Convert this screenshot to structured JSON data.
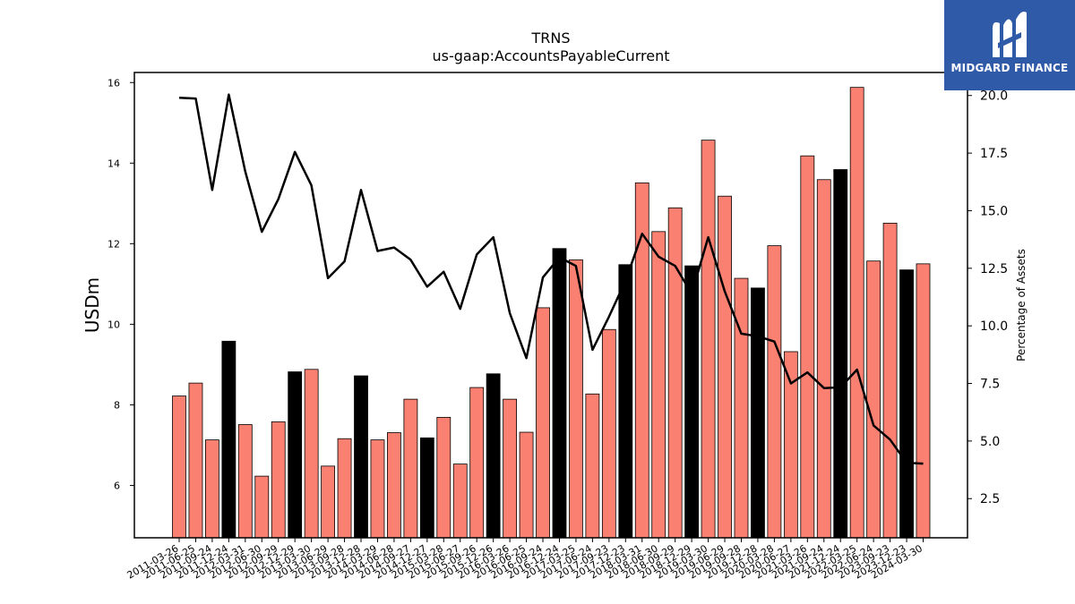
{
  "brand": {
    "name": "MIDGARD FINANCE",
    "logo_icon": "midgard-m-logo-icon",
    "bg_color": "#2f5aa8"
  },
  "chart_data": {
    "type": "bar",
    "title": "TRNS",
    "subtitle": "us-gaap:AccountsPayableCurrent",
    "ylabel": "USDm",
    "y2label": "Percentage of Assets",
    "ylim": [
      4.7,
      16.25
    ],
    "y2lim": [
      0.8,
      21.0
    ],
    "yticks": [
      6,
      8,
      10,
      12,
      14,
      16
    ],
    "y2ticks": [
      "2.5",
      "5.0",
      "7.5",
      "10.0",
      "12.5",
      "15.0",
      "17.5",
      "20.0"
    ],
    "bar_colors": {
      "default": "#fa8072",
      "highlight": "#000000"
    },
    "line_color": "#000000",
    "categories": [
      "2011-03-26",
      "2011-06-25",
      "2011-09-24",
      "2011-12-24",
      "2012-03-31",
      "2012-06-30",
      "2012-09-29",
      "2012-12-29",
      "2013-03-30",
      "2013-06-29",
      "2013-09-28",
      "2013-12-28",
      "2014-03-29",
      "2014-06-28",
      "2014-09-27",
      "2014-12-27",
      "2015-03-28",
      "2015-06-27",
      "2015-09-26",
      "2015-12-26",
      "2016-03-26",
      "2016-06-25",
      "2016-09-24",
      "2016-12-24",
      "2017-03-25",
      "2017-06-24",
      "2017-09-23",
      "2017-12-23",
      "2018-03-31",
      "2018-06-30",
      "2018-09-29",
      "2018-12-29",
      "2019-03-30",
      "2019-06-29",
      "2019-09-28",
      "2019-12-28",
      "2020-03-28",
      "2020-06-27",
      "2021-03-26",
      "2021-09-24",
      "2021-12-24",
      "2022-03-25",
      "2022-06-24",
      "2023-09-23",
      "2023-12-23",
      "2024-03-30"
    ],
    "tick_labels": [
      "2011-03-26",
      "2011-06-25",
      "2011-09-24",
      "2011-12-24",
      "2012-03-31",
      "2012-06-30",
      "2012-09-29",
      "2012-12-29",
      "2013-03-30",
      "2013-06-29",
      "2013-09-28",
      "2013-12-28",
      "2014-03-29",
      "2014-06-28",
      "2014-09-27",
      "2014-12-27",
      "2015-03-28",
      "2015-06-27",
      "2015-09-26",
      "2015-12-26",
      "2016-03-26",
      "2016-06-25",
      "2016-09-24",
      "2016-12-24",
      "2017-03-25",
      "2017-06-24",
      "2017-09-23",
      "2017-12-23",
      "2018-03-31",
      "2018-06-30",
      "2018-09-29",
      "2018-12-29",
      "2019-03-30",
      "2019-06-29",
      "2019-09-28",
      "2019-12-28",
      "2020-03-28",
      "2020-06-27",
      "2021-03-26",
      "2021-09-24",
      "2021-12-24",
      "2022-03-25",
      "2022-06-24",
      "2023-09-23",
      "2023-12-23",
      "2024-03-30"
    ],
    "series": [
      {
        "kind": "bar",
        "axis": "left",
        "values": [
          8.22,
          8.54,
          7.13,
          9.58,
          7.51,
          6.23,
          7.58,
          8.82,
          8.88,
          6.48,
          7.16,
          8.72,
          7.13,
          7.31,
          8.14,
          7.18,
          7.69,
          6.53,
          8.43,
          8.77,
          8.14,
          7.32,
          10.41,
          11.88,
          11.6,
          8.27,
          9.87,
          11.48,
          13.51,
          12.3,
          12.89,
          11.45,
          14.57,
          13.18,
          11.14,
          10.9,
          11.95,
          9.32,
          14.18,
          13.59,
          13.84,
          15.88,
          11.57,
          12.51,
          11.35,
          11.5
        ],
        "highlight": [
          false,
          false,
          false,
          true,
          false,
          false,
          false,
          true,
          false,
          false,
          false,
          true,
          false,
          false,
          false,
          true,
          false,
          false,
          false,
          true,
          false,
          false,
          false,
          true,
          false,
          false,
          false,
          true,
          false,
          false,
          false,
          true,
          false,
          false,
          false,
          true,
          false,
          false,
          false,
          false,
          true,
          false,
          false,
          false,
          true,
          false
        ]
      },
      {
        "kind": "line",
        "axis": "right",
        "values": [
          19.9,
          19.87,
          15.9,
          20.04,
          16.7,
          14.08,
          15.5,
          17.55,
          16.1,
          12.07,
          12.8,
          15.9,
          13.25,
          13.4,
          12.87,
          11.7,
          12.35,
          10.74,
          13.1,
          13.85,
          10.55,
          8.6,
          12.1,
          12.98,
          12.6,
          8.96,
          10.4,
          11.96,
          14.0,
          13.0,
          12.6,
          11.4,
          13.85,
          11.5,
          9.66,
          9.55,
          9.32,
          7.5,
          7.98,
          7.3,
          7.33,
          8.1,
          5.68,
          5.06,
          4.06,
          4.02
        ]
      }
    ]
  }
}
